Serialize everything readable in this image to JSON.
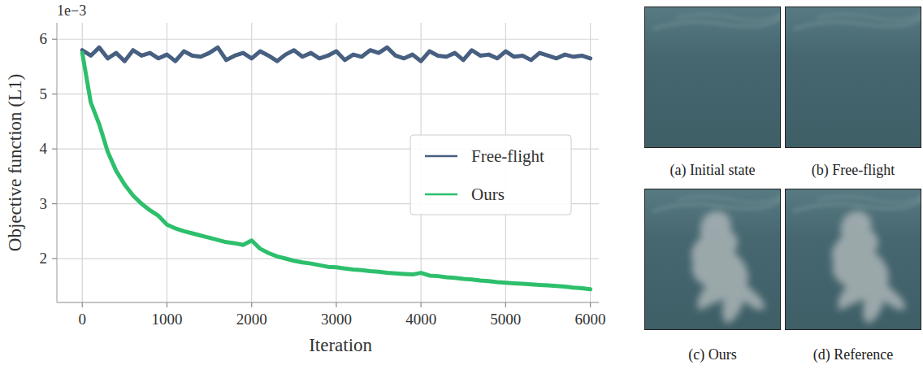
{
  "chart_data": {
    "type": "line",
    "x_label": "Iteration",
    "y_label": "Objective function (L1)",
    "annotation": "1e−3",
    "x": [
      0,
      100,
      200,
      300,
      400,
      500,
      600,
      700,
      800,
      900,
      1000,
      1100,
      1200,
      1300,
      1400,
      1500,
      1600,
      1700,
      1800,
      1900,
      2000,
      2100,
      2200,
      2300,
      2400,
      2500,
      2600,
      2700,
      2800,
      2900,
      3000,
      3100,
      3200,
      3300,
      3400,
      3500,
      3600,
      3700,
      3800,
      3900,
      4000,
      4100,
      4200,
      4300,
      4400,
      4500,
      4600,
      4700,
      4800,
      4900,
      5000,
      5100,
      5200,
      5300,
      5400,
      5500,
      5600,
      5700,
      5800,
      5900,
      6000
    ],
    "series": [
      {
        "name": "Free-flight",
        "color": "#475f80",
        "values": [
          5.8,
          5.7,
          5.85,
          5.65,
          5.75,
          5.6,
          5.8,
          5.7,
          5.75,
          5.65,
          5.72,
          5.6,
          5.78,
          5.7,
          5.68,
          5.75,
          5.85,
          5.62,
          5.7,
          5.75,
          5.65,
          5.78,
          5.7,
          5.6,
          5.72,
          5.8,
          5.68,
          5.75,
          5.65,
          5.7,
          5.78,
          5.62,
          5.72,
          5.68,
          5.8,
          5.75,
          5.85,
          5.7,
          5.65,
          5.72,
          5.6,
          5.78,
          5.7,
          5.68,
          5.75,
          5.62,
          5.8,
          5.7,
          5.72,
          5.65,
          5.78,
          5.68,
          5.7,
          5.62,
          5.75,
          5.7,
          5.65,
          5.72,
          5.68,
          5.7,
          5.65
        ]
      },
      {
        "name": "Ours",
        "color": "#2dbf6c",
        "values": [
          5.75,
          4.85,
          4.45,
          3.95,
          3.6,
          3.35,
          3.15,
          3.0,
          2.88,
          2.78,
          2.62,
          2.55,
          2.5,
          2.46,
          2.42,
          2.38,
          2.34,
          2.3,
          2.28,
          2.25,
          2.33,
          2.18,
          2.1,
          2.04,
          2.0,
          1.96,
          1.93,
          1.91,
          1.88,
          1.85,
          1.84,
          1.82,
          1.8,
          1.79,
          1.77,
          1.76,
          1.74,
          1.73,
          1.72,
          1.71,
          1.74,
          1.69,
          1.68,
          1.66,
          1.65,
          1.63,
          1.62,
          1.6,
          1.59,
          1.57,
          1.56,
          1.55,
          1.54,
          1.53,
          1.52,
          1.51,
          1.5,
          1.49,
          1.47,
          1.46,
          1.44
        ]
      }
    ],
    "xlim": [
      -300,
      6100
    ],
    "ylim": [
      1.2,
      6.3
    ],
    "xticks": [
      0,
      1000,
      2000,
      3000,
      4000,
      5000,
      6000
    ],
    "yticks": [
      2,
      3,
      4,
      5,
      6
    ],
    "grid": true,
    "legend": "right"
  },
  "panels": [
    {
      "caption": "(a) Initial state",
      "blob": false
    },
    {
      "caption": "(b) Free-flight",
      "blob": false
    },
    {
      "caption": "(c) Ours",
      "blob": true
    },
    {
      "caption": "(d) Reference",
      "blob": true
    }
  ]
}
